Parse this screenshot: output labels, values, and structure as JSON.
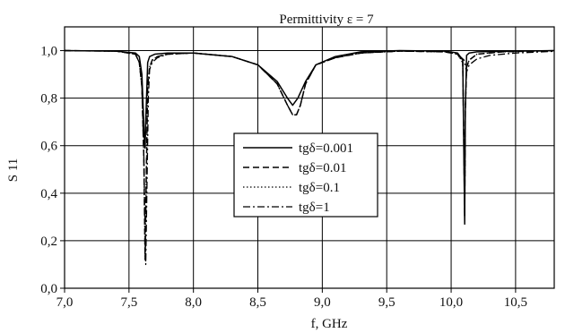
{
  "chart_data": {
    "type": "line",
    "title": "Permittivity ε = 7",
    "xlabel": "f, GHz",
    "ylabel": "S 11",
    "xlim": [
      7.0,
      10.8
    ],
    "ylim": [
      0.0,
      1.1
    ],
    "x_ticks": [
      7.0,
      7.5,
      8.0,
      8.5,
      9.0,
      9.5,
      10.0,
      10.5
    ],
    "x_tick_labels": [
      "7,0",
      "7,5",
      "8,0",
      "8,5",
      "9,0",
      "9,5",
      "10,0",
      "10,5"
    ],
    "y_ticks": [
      0.0,
      0.2,
      0.4,
      0.6,
      0.8,
      1.0
    ],
    "y_tick_labels": [
      "0,0",
      "0,2",
      "0,4",
      "0,6",
      "0,8",
      "1,0"
    ],
    "grid": true,
    "legend_position": "center",
    "series": [
      {
        "name": "tgδ=0.001",
        "line_style": "solid",
        "color": "#000000",
        "x": [
          7.0,
          7.4,
          7.55,
          7.58,
          7.6,
          7.62,
          7.625,
          7.63,
          7.645,
          7.66,
          7.7,
          7.8,
          8.0,
          8.3,
          8.5,
          8.65,
          8.73,
          8.77,
          8.81,
          8.87,
          8.95,
          9.1,
          9.3,
          9.6,
          9.95,
          10.05,
          10.09,
          10.1,
          10.105,
          10.11,
          10.12,
          10.14,
          10.2,
          10.4,
          10.8
        ],
        "y": [
          1.0,
          0.998,
          0.99,
          0.975,
          0.9,
          0.62,
          0.59,
          0.7,
          0.95,
          0.975,
          0.985,
          0.99,
          0.99,
          0.975,
          0.94,
          0.87,
          0.8,
          0.77,
          0.8,
          0.87,
          0.94,
          0.975,
          0.995,
          1.0,
          0.998,
          0.99,
          0.96,
          0.5,
          0.27,
          0.75,
          0.98,
          0.99,
          0.995,
          0.997,
          1.0
        ]
      },
      {
        "name": "tgδ=0.01",
        "line_style": "dashed",
        "color": "#000000",
        "x": [
          7.0,
          7.4,
          7.55,
          7.58,
          7.6,
          7.615,
          7.625,
          7.635,
          7.645,
          7.66,
          7.68,
          7.72,
          7.8,
          8.0,
          8.3,
          8.5,
          8.65,
          8.73,
          8.77,
          8.8,
          8.83,
          8.87,
          8.95,
          9.1,
          9.3,
          9.6,
          9.95,
          10.05,
          10.09,
          10.1,
          10.105,
          10.11,
          10.12,
          10.14,
          10.2,
          10.4,
          10.8
        ],
        "y": [
          1.0,
          0.998,
          0.985,
          0.95,
          0.85,
          0.55,
          0.12,
          0.5,
          0.85,
          0.93,
          0.96,
          0.975,
          0.985,
          0.99,
          0.975,
          0.94,
          0.86,
          0.77,
          0.73,
          0.73,
          0.77,
          0.86,
          0.94,
          0.97,
          0.99,
          0.998,
          0.995,
          0.985,
          0.95,
          0.55,
          0.3,
          0.75,
          0.93,
          0.96,
          0.985,
          0.995,
          1.0
        ]
      },
      {
        "name": "tgδ=0.1",
        "line_style": "dotted",
        "color": "#000000",
        "x": [
          7.0,
          7.4,
          7.55,
          7.58,
          7.6,
          7.615,
          7.625,
          7.635,
          7.645,
          7.66,
          7.68,
          7.72,
          7.8,
          8.0,
          8.3,
          8.5,
          8.65,
          8.73,
          8.77,
          8.8,
          8.83,
          8.87,
          8.95,
          9.1,
          9.3,
          9.6,
          9.95,
          10.05,
          10.09,
          10.1,
          10.105,
          10.11,
          10.12,
          10.14,
          10.2,
          10.4,
          10.8
        ],
        "y": [
          1.0,
          0.998,
          0.985,
          0.95,
          0.85,
          0.56,
          0.13,
          0.5,
          0.85,
          0.93,
          0.96,
          0.975,
          0.985,
          0.99,
          0.975,
          0.94,
          0.86,
          0.77,
          0.73,
          0.73,
          0.77,
          0.86,
          0.94,
          0.97,
          0.99,
          0.998,
          0.995,
          0.985,
          0.95,
          0.55,
          0.3,
          0.75,
          0.93,
          0.96,
          0.985,
          0.995,
          1.0
        ]
      },
      {
        "name": "tgδ=1",
        "line_style": "dashdot",
        "color": "#000000",
        "x": [
          7.0,
          7.4,
          7.55,
          7.58,
          7.6,
          7.615,
          7.63,
          7.64,
          7.65,
          7.66,
          7.68,
          7.72,
          7.8,
          8.0,
          8.3,
          8.5,
          8.65,
          8.73,
          8.77,
          8.8,
          8.83,
          8.87,
          8.95,
          9.1,
          9.3,
          9.6,
          9.95,
          10.05,
          10.1,
          10.12,
          10.14,
          10.2,
          10.3,
          10.5,
          10.8
        ],
        "y": [
          1.0,
          0.998,
          0.985,
          0.95,
          0.85,
          0.56,
          0.1,
          0.45,
          0.8,
          0.92,
          0.95,
          0.97,
          0.985,
          0.99,
          0.975,
          0.94,
          0.86,
          0.77,
          0.73,
          0.73,
          0.77,
          0.86,
          0.94,
          0.97,
          0.99,
          0.998,
          0.995,
          0.985,
          0.96,
          0.91,
          0.94,
          0.965,
          0.98,
          0.99,
          0.997
        ]
      }
    ]
  }
}
